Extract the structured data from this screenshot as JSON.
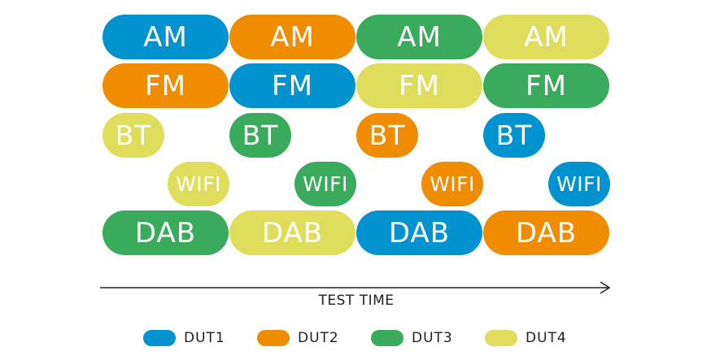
{
  "colors": {
    "DUT1": "#0192d0",
    "DUT2": "#ef8c00",
    "DUT3": "#3aaa5c",
    "DUT4": "#e1dd5c"
  },
  "rows": [
    {
      "label": "AM",
      "cells": [
        "DUT1",
        "DUT2",
        "DUT3",
        "DUT4"
      ]
    },
    {
      "label": "FM",
      "cells": [
        "DUT2",
        "DUT1",
        "DUT4",
        "DUT3"
      ]
    },
    {
      "label": "BT",
      "cells": [
        "DUT4",
        "DUT3",
        "DUT2",
        "DUT1"
      ]
    },
    {
      "label": "WIFI",
      "cells": [
        "DUT4",
        "DUT3",
        "DUT2",
        "DUT1"
      ]
    },
    {
      "label": "DAB",
      "cells": [
        "DUT3",
        "DUT4",
        "DUT1",
        "DUT2"
      ]
    }
  ],
  "axis": {
    "label": "TEST TIME"
  },
  "legend": [
    {
      "label": "DUT1",
      "color": "#0192d0"
    },
    {
      "label": "DUT2",
      "color": "#ef8c00"
    },
    {
      "label": "DUT3",
      "color": "#3aaa5c"
    },
    {
      "label": "DUT4",
      "color": "#e1dd5c"
    }
  ]
}
